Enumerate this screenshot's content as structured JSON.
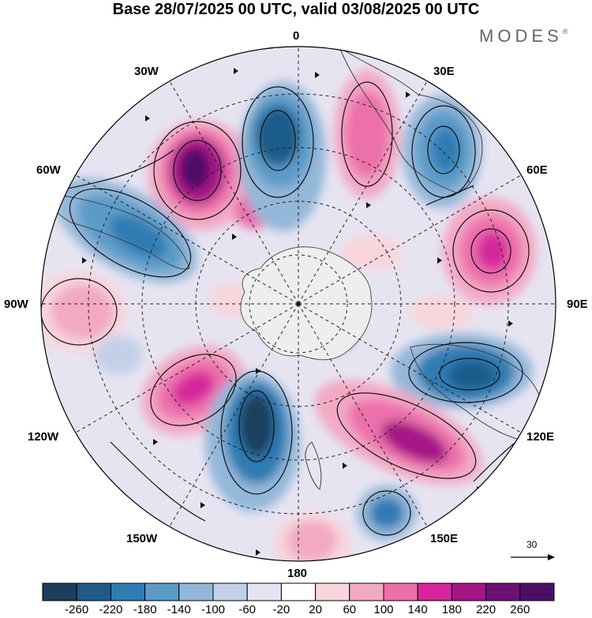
{
  "title": "Base 28/07/2025 00 UTC, valid 03/08/2025 00 UTC",
  "brand": "MODES",
  "brand_mark": "®",
  "longitude_labels": {
    "n0": "0",
    "e30": "30E",
    "e60": "60E",
    "e90": "90E",
    "e120": "120E",
    "e150": "150E",
    "s180": "180",
    "w150": "150W",
    "w120": "120W",
    "w90": "90W",
    "w60": "60W",
    "w30": "30W"
  },
  "reference_vector_label": "30",
  "colorbar": {
    "labels": [
      "-260",
      "-220",
      "-180",
      "-140",
      "-100",
      "-60",
      "-20",
      "20",
      "60",
      "100",
      "140",
      "180",
      "220",
      "260"
    ],
    "colors": [
      "#1d3f5e",
      "#1f5b8a",
      "#2f7bb3",
      "#5b9bc8",
      "#93b7d9",
      "#c2d0e8",
      "#e7e4f2",
      "#ffffff",
      "#f8d6dc",
      "#f3a9c4",
      "#ec6fab",
      "#d6259b",
      "#a51486",
      "#6e0f75",
      "#4b0d65"
    ]
  },
  "map": {
    "projection": "south polar stereographic",
    "contour_field_range": [
      -260,
      260
    ],
    "highs": [
      {
        "name": "anomaly-high-atlantic-west",
        "value": 240
      },
      {
        "name": "anomaly-high-southern-atlantic",
        "value": 170
      },
      {
        "name": "anomaly-high-indian-ocean",
        "value": 210
      },
      {
        "name": "anomaly-high-southeast-pacific",
        "value": 110
      },
      {
        "name": "anomaly-high-south-pacific",
        "value": 190
      },
      {
        "name": "anomaly-high-tasman",
        "value": 240
      },
      {
        "name": "anomaly-high-ross",
        "value": 90
      }
    ],
    "lows": [
      {
        "name": "anomaly-low-south-america",
        "value": -200
      },
      {
        "name": "anomaly-low-south-atlantic",
        "value": -220
      },
      {
        "name": "anomaly-low-southern-africa",
        "value": -200
      },
      {
        "name": "anomaly-low-south-indian",
        "value": -240
      },
      {
        "name": "anomaly-low-pacific",
        "value": -260
      },
      {
        "name": "anomaly-low-new-zealand",
        "value": -190
      }
    ]
  }
}
